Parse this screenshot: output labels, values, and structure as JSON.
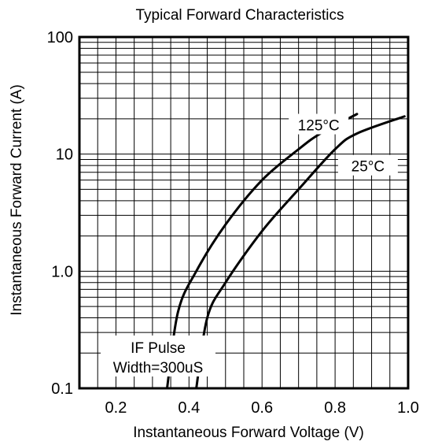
{
  "chart_data": {
    "type": "line",
    "title": "Typical Forward Characteristics",
    "xlabel": "Instantaneous Forward Voltage (V)",
    "ylabel": "Instantaneous Forward Current (A)",
    "xlim": [
      0.1,
      1.0
    ],
    "ylim": [
      0.1,
      100
    ],
    "y_scale": "log",
    "grid": true,
    "x_ticks": [
      {
        "value": 0.2,
        "label": "0.2"
      },
      {
        "value": 0.4,
        "label": "0.4"
      },
      {
        "value": 0.6,
        "label": "0.6"
      },
      {
        "value": 0.8,
        "label": "0.8"
      },
      {
        "value": 1.0,
        "label": "1.0"
      }
    ],
    "y_ticks": [
      {
        "value": 0.1,
        "label": "0.1"
      },
      {
        "value": 1,
        "label": "1.0"
      },
      {
        "value": 10,
        "label": "10"
      },
      {
        "value": 100,
        "label": "100"
      }
    ],
    "series": [
      {
        "name": "125°C",
        "x": [
          0.34,
          0.37,
          0.42,
          0.5,
          0.6,
          0.7,
          0.76,
          0.86
        ],
        "y": [
          0.1,
          0.45,
          1.0,
          2.5,
          6,
          11,
          15,
          22
        ]
      },
      {
        "name": "25°C",
        "x": [
          0.42,
          0.45,
          0.5,
          0.6,
          0.7,
          0.8,
          0.86,
          0.99
        ],
        "y": [
          0.1,
          0.4,
          0.8,
          2.2,
          5,
          11,
          15,
          21
        ]
      }
    ],
    "annotation": {
      "line1": "IF Pulse",
      "line2": "Width=300uS"
    }
  }
}
